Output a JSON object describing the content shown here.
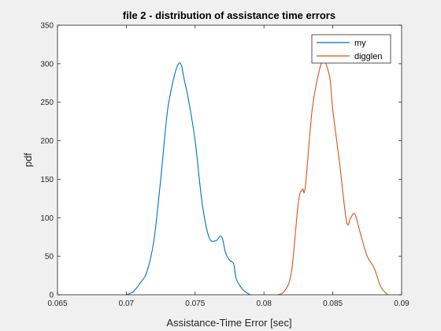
{
  "chart_data": {
    "type": "line",
    "title": "file 2 - distribution of assistance time errors",
    "xlabel": "Assistance-Time Error [sec]",
    "ylabel": "pdf",
    "xlim": [
      0.065,
      0.09
    ],
    "ylim": [
      0,
      350
    ],
    "xticks": [
      "0.065",
      "0.07",
      "0.075",
      "0.08",
      "0.085",
      "0.09"
    ],
    "yticks": [
      "0",
      "50",
      "100",
      "150",
      "200",
      "250",
      "300",
      "350"
    ],
    "grid": false,
    "legend_position": "top-right",
    "series": [
      {
        "name": "my",
        "color": "#0072BD",
        "x": [
          0.07,
          0.0705,
          0.071,
          0.0715,
          0.072,
          0.0725,
          0.073,
          0.0735,
          0.0738,
          0.074,
          0.0742,
          0.0745,
          0.075,
          0.0755,
          0.076,
          0.0765,
          0.0768,
          0.077,
          0.0772,
          0.0775,
          0.0778,
          0.078,
          0.0785,
          0.079
        ],
        "y": [
          0,
          4,
          15,
          30,
          70,
          150,
          240,
          285,
          300,
          298,
          280,
          255,
          200,
          120,
          75,
          70,
          76,
          72,
          55,
          45,
          40,
          20,
          6,
          0
        ]
      },
      {
        "name": "digglen",
        "color": "#D95319",
        "x": [
          0.081,
          0.0815,
          0.082,
          0.0825,
          0.0828,
          0.083,
          0.0835,
          0.084,
          0.0843,
          0.0845,
          0.0848,
          0.085,
          0.0855,
          0.086,
          0.0863,
          0.0866,
          0.087,
          0.0875,
          0.088,
          0.0885,
          0.089
        ],
        "y": [
          0,
          5,
          30,
          120,
          137,
          140,
          240,
          290,
          305,
          300,
          280,
          240,
          170,
          95,
          100,
          105,
          80,
          50,
          35,
          10,
          0
        ]
      }
    ]
  }
}
